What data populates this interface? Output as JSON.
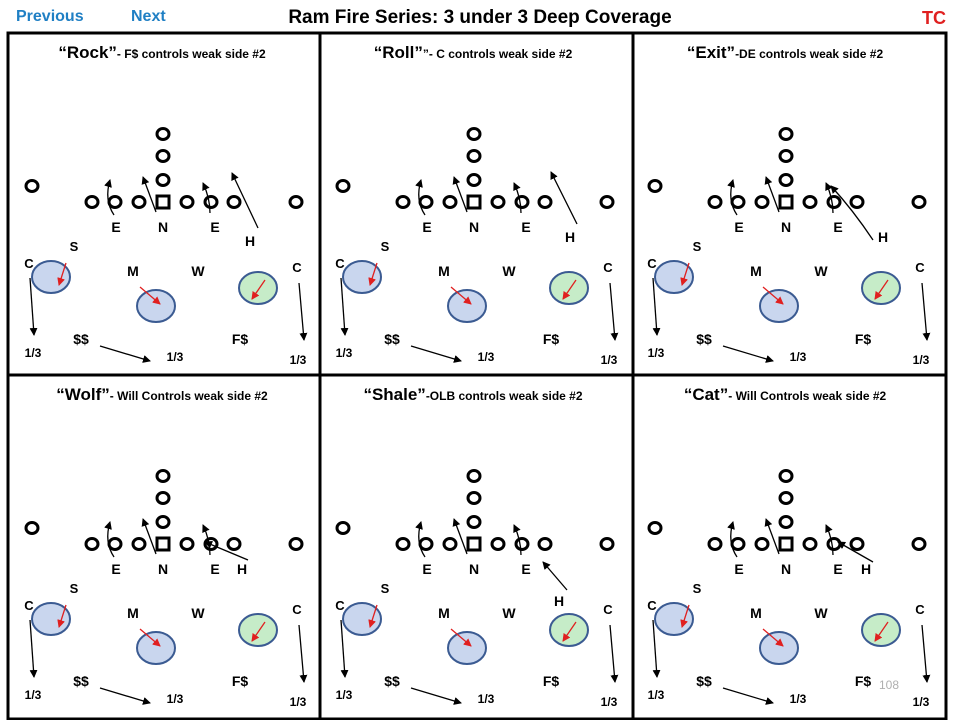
{
  "nav": {
    "previous": "Previous",
    "next": "Next"
  },
  "title": "Ram Fire Series: 3 under 3 Deep Coverage",
  "corner": "TC",
  "page_number": "108",
  "colors": {
    "nav": "#1f7fc4",
    "corner": "#e02020",
    "underneath": "#c9d6ee",
    "hook": "#c6ecc8",
    "arrow_red": "#e02020"
  },
  "panels": [
    {
      "name": "rock",
      "call": "“Rock”",
      "desc": "- F$ controls weak side #2",
      "h_label": "H",
      "c_right": "C",
      "fs": "F$",
      "ss": "$$",
      "third_left": "1/3",
      "third_mid": "1/3",
      "third_right": "1/3",
      "def": {
        "e1": "E",
        "n": "N",
        "e2": "E",
        "s": "S",
        "m": "M",
        "w": "W",
        "c_left": "C"
      }
    },
    {
      "name": "roll",
      "call": "“Roll”",
      "desc": "”- C controls weak side #2",
      "h_label": "H",
      "c_right": "C",
      "fs": "F$",
      "ss": "$$",
      "third_left": "1/3",
      "third_mid": "1/3",
      "third_right": "1/3",
      "def": {
        "e1": "E",
        "n": "N",
        "e2": "E",
        "s": "S",
        "m": "M",
        "w": "W",
        "c_left": "C"
      }
    },
    {
      "name": "exit",
      "call": "“Exit”",
      "desc": "-DE controls weak side #2",
      "h_label": "H",
      "c_right": "C",
      "fs": "F$",
      "ss": "$$",
      "third_left": "1/3",
      "third_mid": "1/3",
      "third_right": "1/3",
      "def": {
        "e1": "E",
        "n": "N",
        "e2": "E",
        "s": "S",
        "m": "M",
        "w": "W",
        "c_left": "C"
      }
    },
    {
      "name": "wolf",
      "call": "“Wolf”",
      "desc": "- Will Controls weak side #2",
      "h_label": "H",
      "c_right": "C",
      "fs": "F$",
      "ss": "$$",
      "third_left": "1/3",
      "third_mid": "1/3",
      "third_right": "1/3",
      "def": {
        "e1": "E",
        "n": "N",
        "e2": "E",
        "s": "S",
        "m": "M",
        "w": "W",
        "c_left": "C"
      }
    },
    {
      "name": "shale",
      "call": "“Shale”",
      "desc": "-OLB controls weak side #2",
      "h_label": "H",
      "c_right": "C",
      "fs": "F$",
      "ss": "$$",
      "third_left": "1/3",
      "third_mid": "1/3",
      "third_right": "1/3",
      "def": {
        "e1": "E",
        "n": "N",
        "e2": "E",
        "s": "S",
        "m": "M",
        "w": "W",
        "c_left": "C"
      }
    },
    {
      "name": "cat",
      "call": "“Cat”",
      "desc": "- Will Controls weak side #2",
      "h_label": "H",
      "c_right": "C",
      "fs": "F$",
      "ss": "$$",
      "third_left": "1/3",
      "third_mid": "1/3",
      "third_right": "1/3",
      "def": {
        "e1": "E",
        "n": "N",
        "e2": "E",
        "s": "S",
        "m": "M",
        "w": "W",
        "c_left": "C"
      }
    }
  ]
}
